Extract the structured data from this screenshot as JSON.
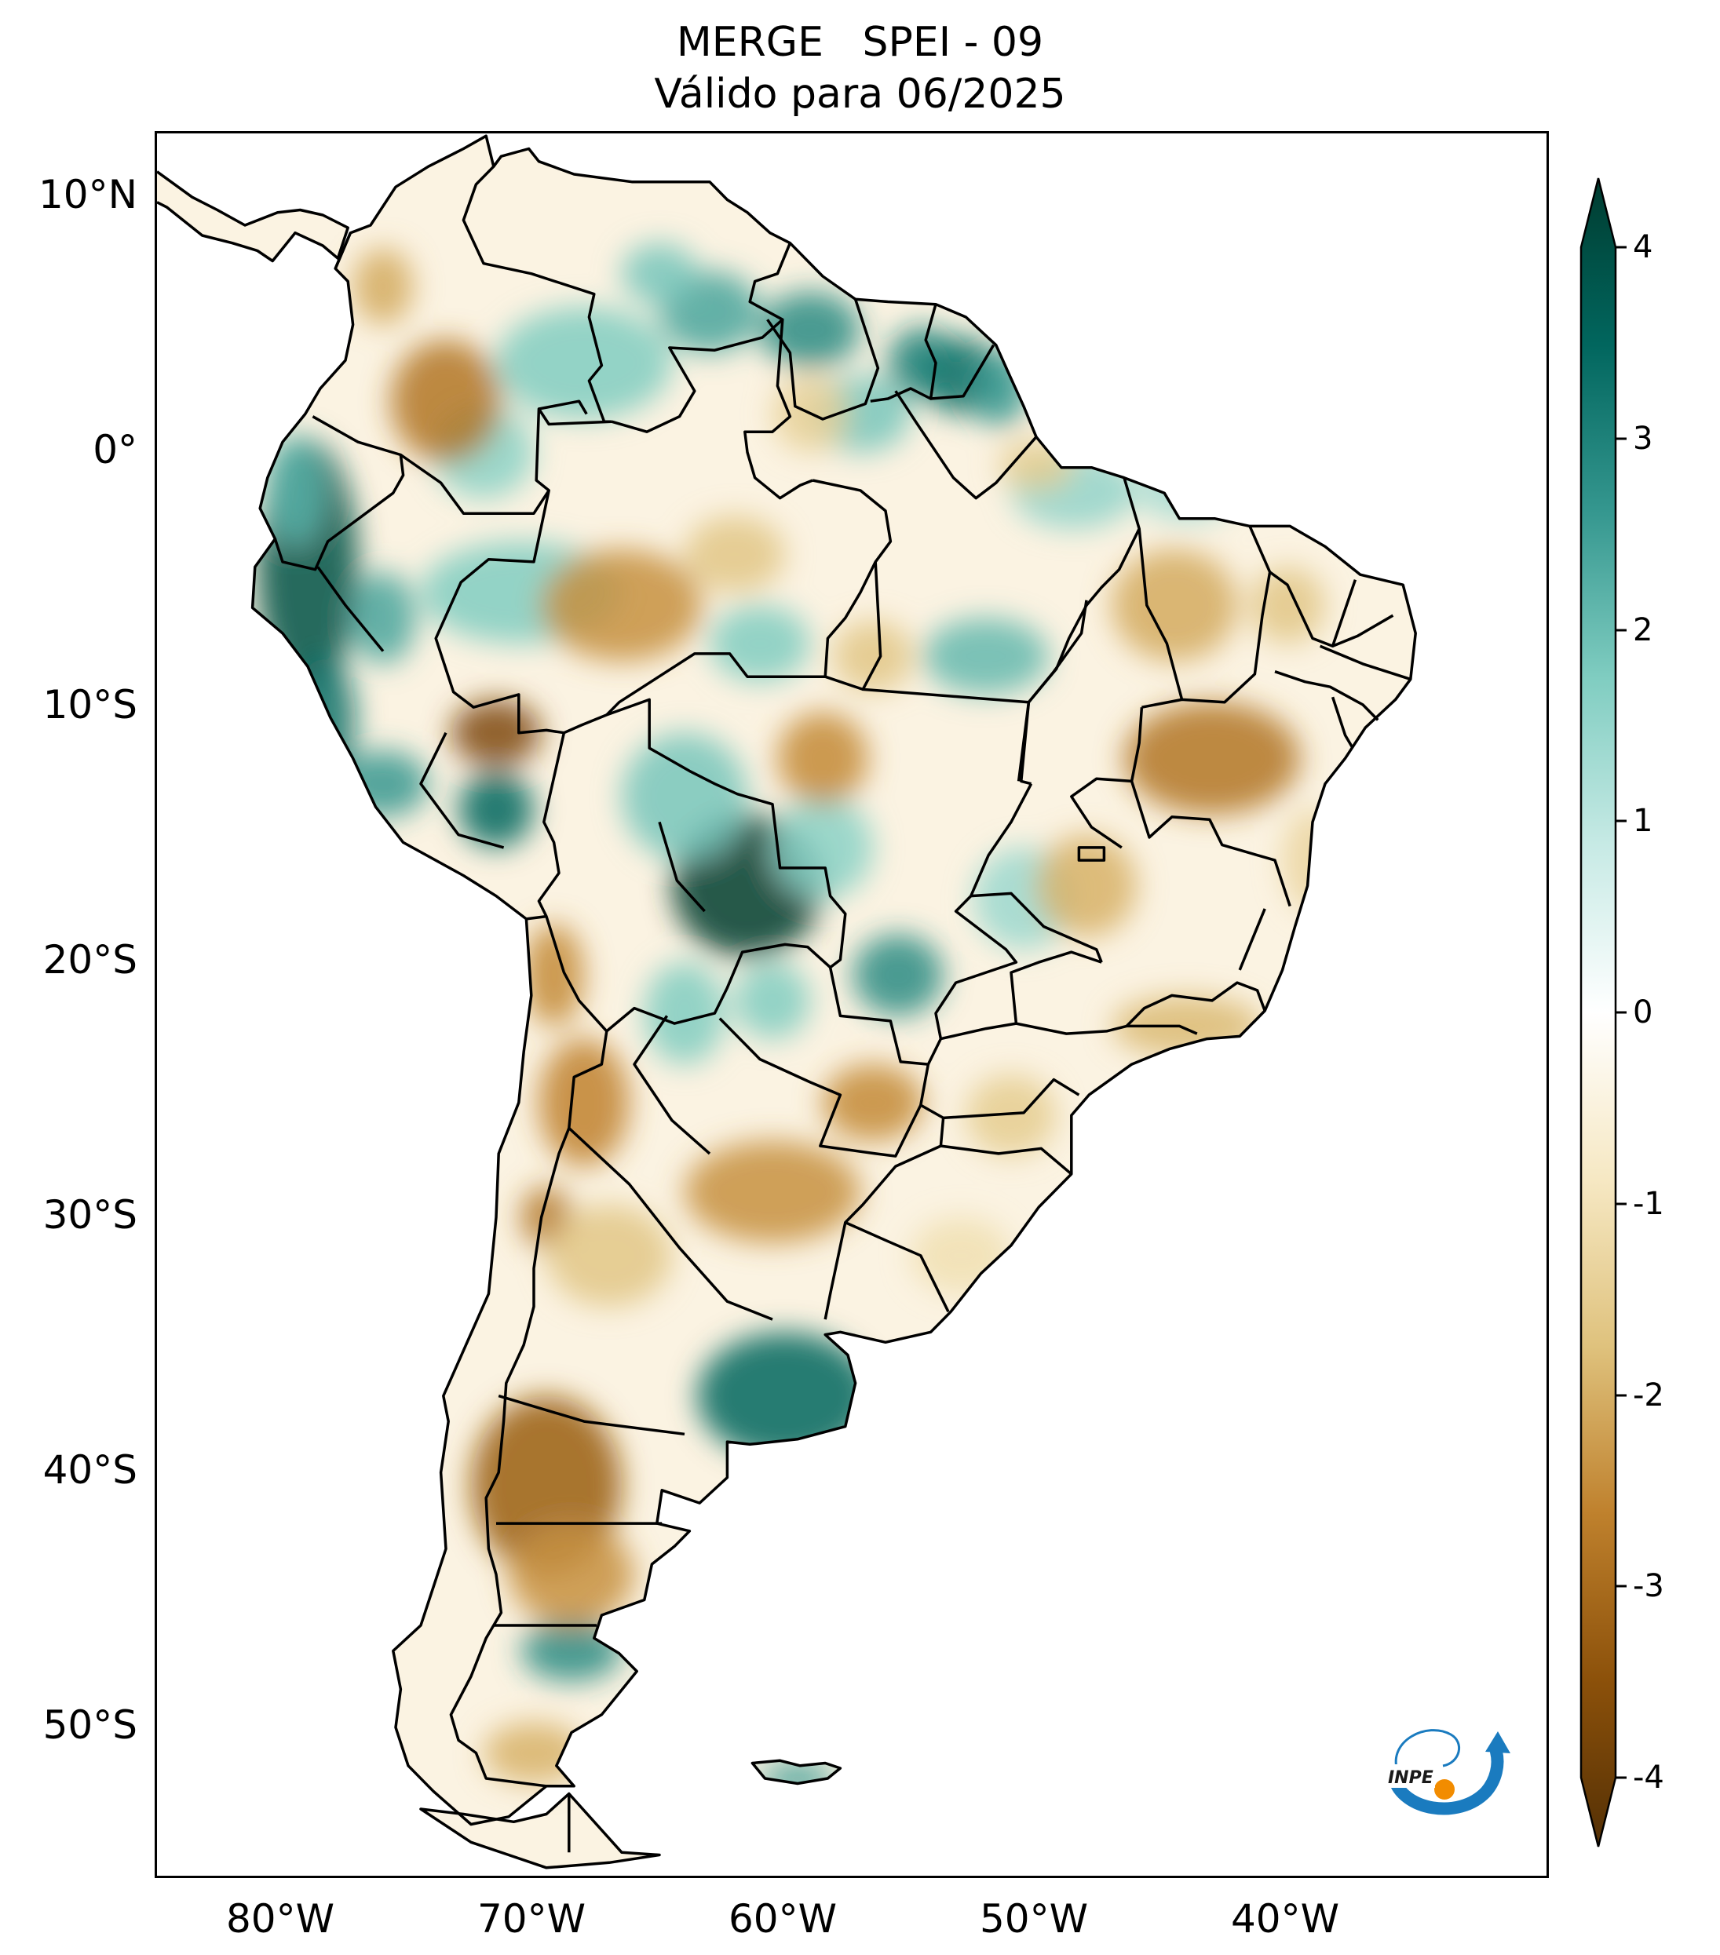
{
  "title": {
    "line1": "MERGE   SPEI - 09",
    "line2": "Válido para 06/2025"
  },
  "map": {
    "extent": {
      "lon_min": -85,
      "lon_max": -29.5,
      "lat_min": -56,
      "lat_max": 12.5
    },
    "lat_labels": [
      {
        "text": "10°N",
        "lat": 10
      },
      {
        "text": "0°",
        "lat": 0
      },
      {
        "text": "10°S",
        "lat": -10
      },
      {
        "text": "20°S",
        "lat": -20
      },
      {
        "text": "30°S",
        "lat": -30
      },
      {
        "text": "40°S",
        "lat": -40
      },
      {
        "text": "50°S",
        "lat": -50
      }
    ],
    "lon_labels": [
      {
        "text": "80°W",
        "lon": -80
      },
      {
        "text": "70°W",
        "lon": -70
      },
      {
        "text": "60°W",
        "lon": -60
      },
      {
        "text": "50°W",
        "lon": -50
      },
      {
        "text": "40°W",
        "lon": -40
      }
    ]
  },
  "colorbar": {
    "min": -4,
    "max": 4,
    "ticks": [
      {
        "text": "4",
        "value": 4
      },
      {
        "text": "3",
        "value": 3
      },
      {
        "text": "2",
        "value": 2
      },
      {
        "text": "1",
        "value": 1
      },
      {
        "text": "0",
        "value": 0
      },
      {
        "text": "-1",
        "value": -1
      },
      {
        "text": "-2",
        "value": -2
      },
      {
        "text": "-3",
        "value": -3
      },
      {
        "text": "-4",
        "value": -4
      }
    ],
    "colors": [
      "#543005",
      "#8c510a",
      "#bf812d",
      "#dfc27d",
      "#f6e8c3",
      "#ffffff",
      "#c7eae5",
      "#80cdc1",
      "#35978f",
      "#01665e",
      "#003c30"
    ]
  },
  "logo": {
    "text": "INPE",
    "colors": {
      "blue": "#1a7bbf",
      "orange": "#f28c00"
    }
  }
}
